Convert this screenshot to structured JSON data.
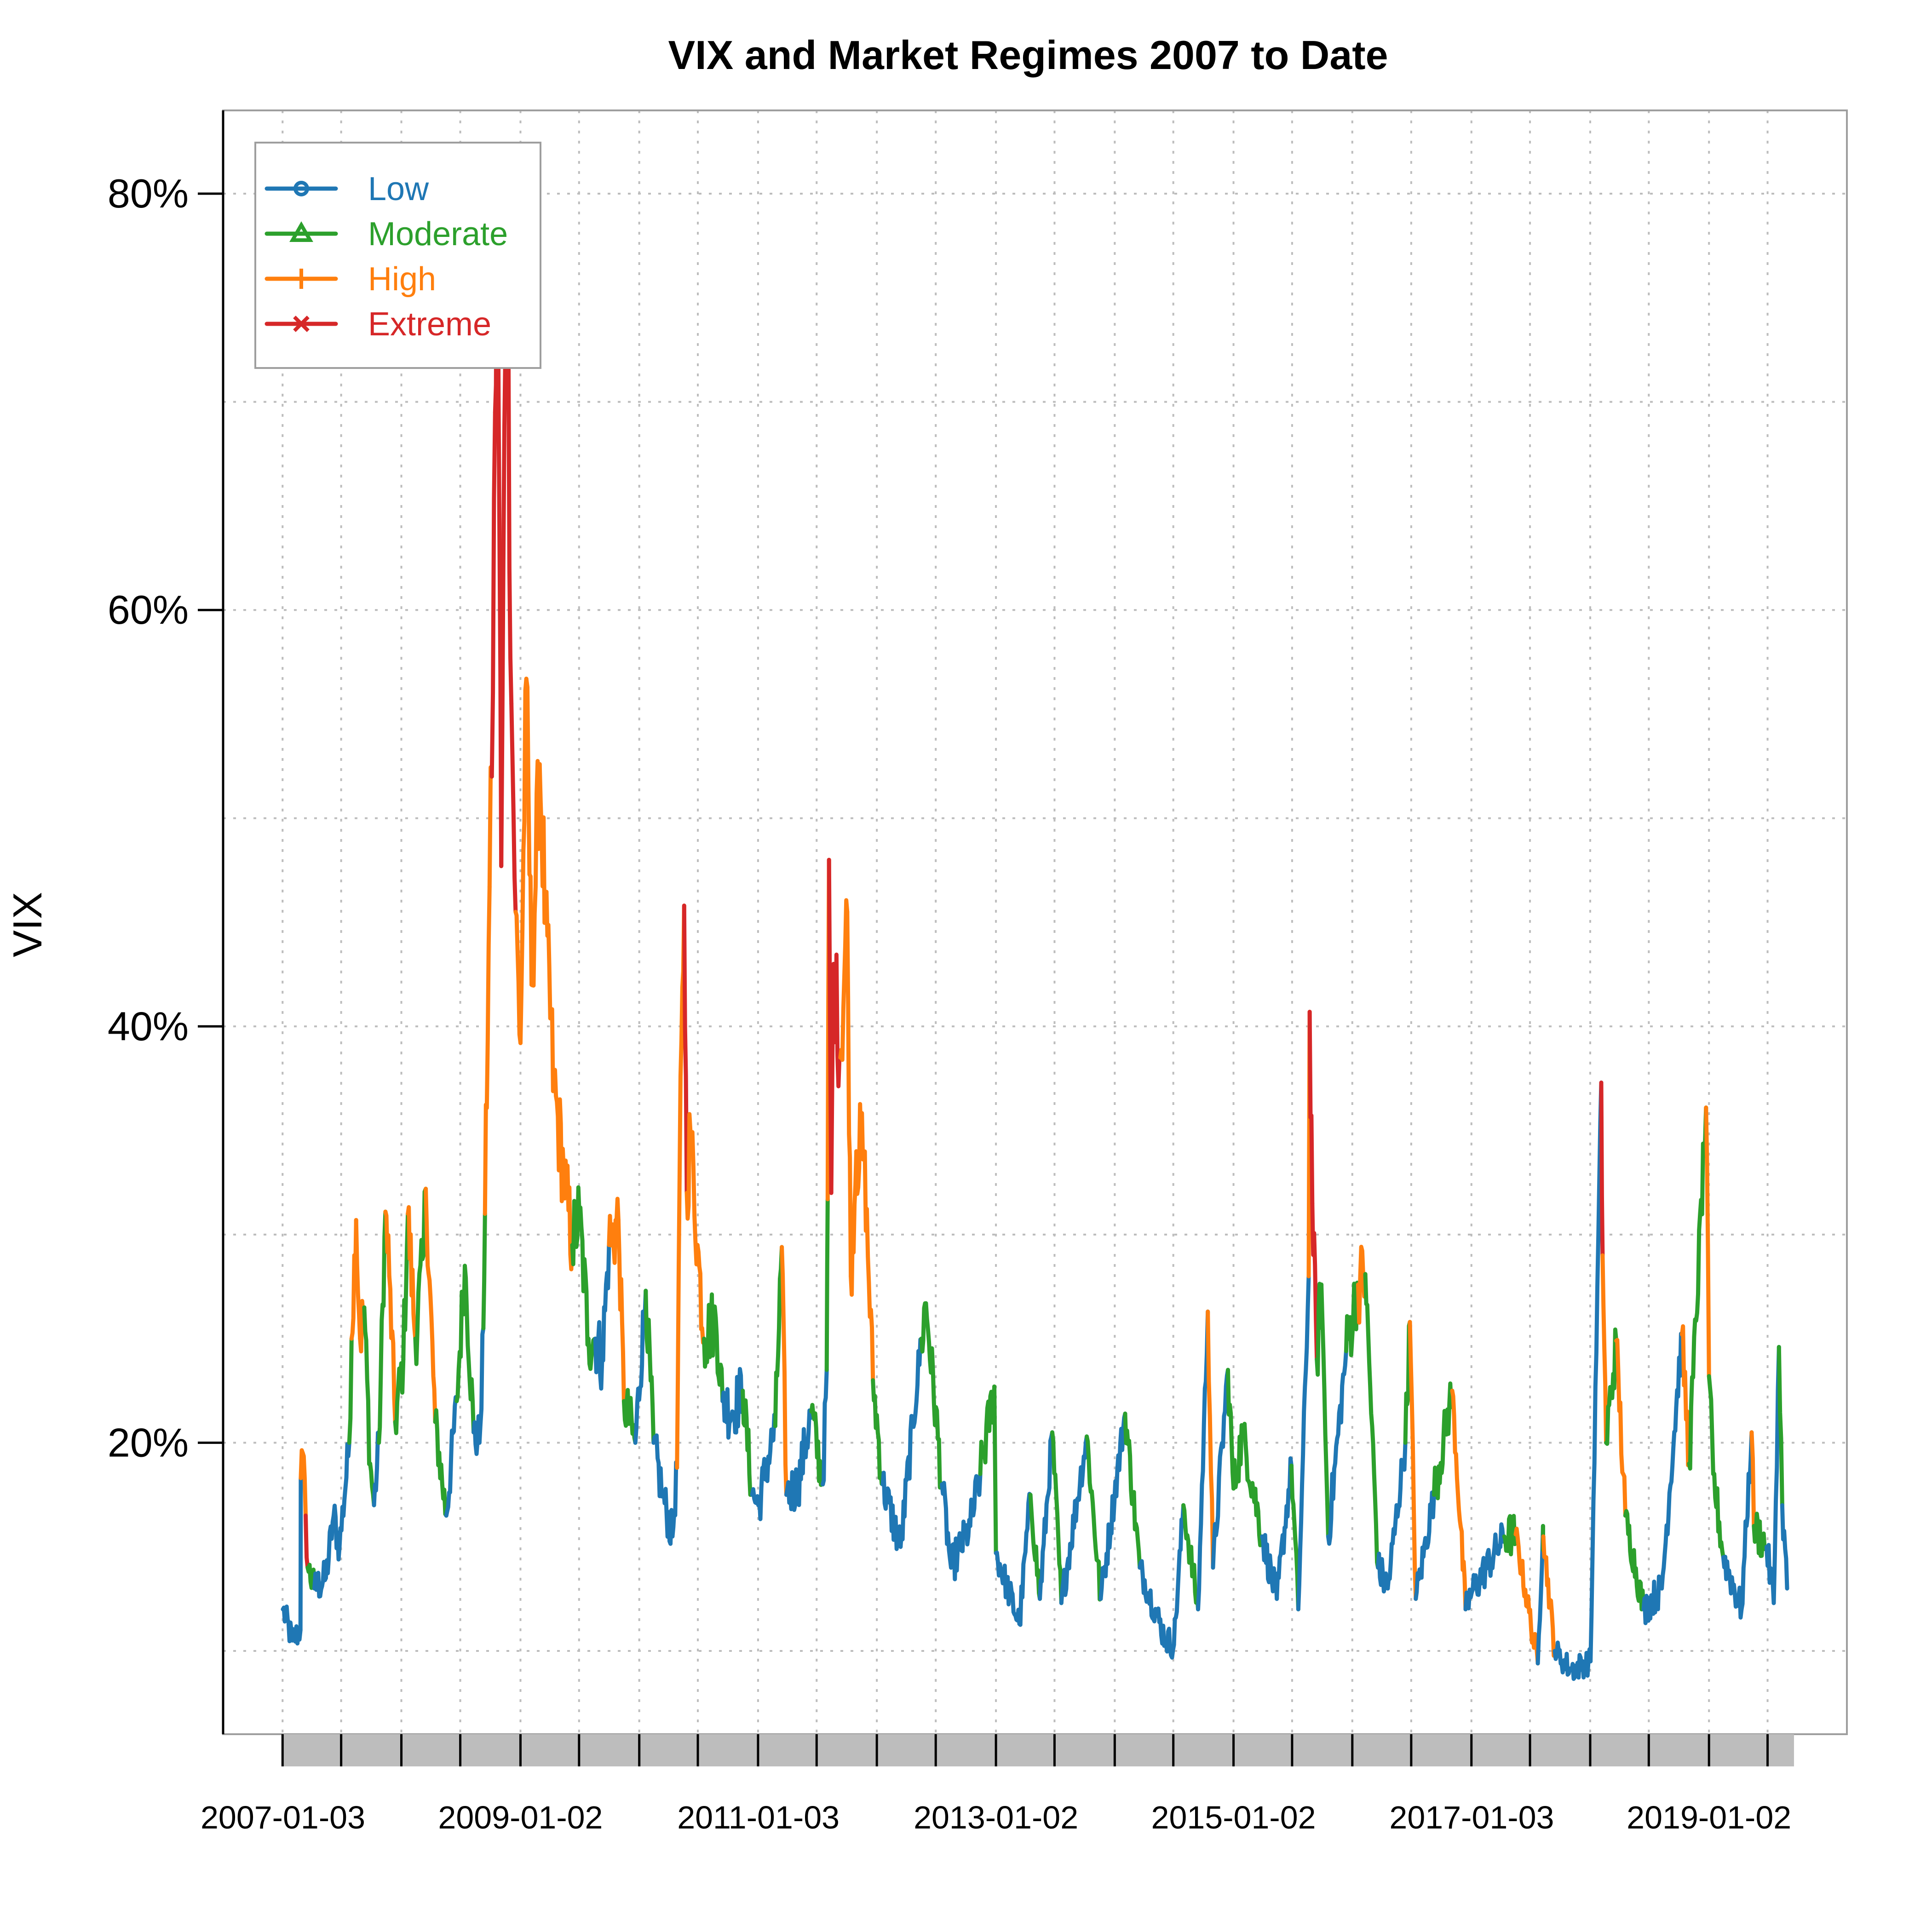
{
  "chart_data": {
    "type": "line",
    "title": "VIX and Market Regimes 2007 to Date",
    "ylabel": "VIX",
    "xlabel": "",
    "ylim": [
      6,
      84
    ],
    "y_ticks": [
      20,
      40,
      60,
      80
    ],
    "y_tick_labels": [
      "20%",
      "40%",
      "60%",
      "80%"
    ],
    "y_grid": [
      10,
      20,
      30,
      40,
      50,
      60,
      70,
      80
    ],
    "x_tick_labels": [
      "2007-01-03",
      "2009-01-02",
      "2011-01-03",
      "2013-01-02",
      "2015-01-02",
      "2017-01-03",
      "2019-01-02"
    ],
    "x_range": [
      "2007-01-03",
      "2019-08-30"
    ],
    "grid": true,
    "legend_position": "top-left",
    "regimes": [
      {
        "name": "Low",
        "color": "#1f77b4",
        "marker": "circle"
      },
      {
        "name": "Moderate",
        "color": "#2ca02c",
        "marker": "triangle"
      },
      {
        "name": "High",
        "color": "#ff7f0e",
        "marker": "plus"
      },
      {
        "name": "Extreme",
        "color": "#d62728",
        "marker": "x"
      }
    ],
    "series": [
      {
        "date": "2007-01-03",
        "vix": 12.0,
        "regime": "Low"
      },
      {
        "date": "2007-02-01",
        "vix": 10.5,
        "regime": "Low"
      },
      {
        "date": "2007-02-26",
        "vix": 11.0,
        "regime": "Low"
      },
      {
        "date": "2007-02-27",
        "vix": 18.3,
        "regime": "High"
      },
      {
        "date": "2007-03-05",
        "vix": 19.5,
        "regime": "High"
      },
      {
        "date": "2007-03-14",
        "vix": 16.5,
        "regime": "Extreme"
      },
      {
        "date": "2007-03-20",
        "vix": 14.0,
        "regime": "Moderate"
      },
      {
        "date": "2007-04-10",
        "vix": 13.0,
        "regime": "Low"
      },
      {
        "date": "2007-05-15",
        "vix": 13.5,
        "regime": "Low"
      },
      {
        "date": "2007-06-08",
        "vix": 16.5,
        "regime": "Low"
      },
      {
        "date": "2007-06-26",
        "vix": 15.0,
        "regime": "Low"
      },
      {
        "date": "2007-07-26",
        "vix": 20.0,
        "regime": "Moderate"
      },
      {
        "date": "2007-08-02",
        "vix": 25.0,
        "regime": "High"
      },
      {
        "date": "2007-08-16",
        "vix": 30.7,
        "regime": "High"
      },
      {
        "date": "2007-08-28",
        "vix": 25.0,
        "regime": "High"
      },
      {
        "date": "2007-09-10",
        "vix": 26.5,
        "regime": "Moderate"
      },
      {
        "date": "2007-09-28",
        "vix": 19.0,
        "regime": "Moderate"
      },
      {
        "date": "2007-10-10",
        "vix": 17.0,
        "regime": "Low"
      },
      {
        "date": "2007-10-25",
        "vix": 20.0,
        "regime": "Moderate"
      },
      {
        "date": "2007-11-14",
        "vix": 31.1,
        "regime": "High"
      },
      {
        "date": "2007-11-26",
        "vix": 28.0,
        "regime": "High"
      },
      {
        "date": "2007-12-14",
        "vix": 21.0,
        "regime": "Moderate"
      },
      {
        "date": "2008-01-08",
        "vix": 24.0,
        "regime": "Moderate"
      },
      {
        "date": "2008-01-22",
        "vix": 31.0,
        "regime": "High"
      },
      {
        "date": "2008-02-14",
        "vix": 25.0,
        "regime": "Moderate"
      },
      {
        "date": "2008-03-10",
        "vix": 29.0,
        "regime": "Moderate"
      },
      {
        "date": "2008-03-17",
        "vix": 32.2,
        "regime": "High"
      },
      {
        "date": "2008-04-15",
        "vix": 21.0,
        "regime": "Moderate"
      },
      {
        "date": "2008-05-19",
        "vix": 16.5,
        "regime": "Low"
      },
      {
        "date": "2008-06-20",
        "vix": 22.0,
        "regime": "Moderate"
      },
      {
        "date": "2008-07-15",
        "vix": 28.5,
        "regime": "Moderate"
      },
      {
        "date": "2008-08-11",
        "vix": 20.5,
        "regime": "Low"
      },
      {
        "date": "2008-08-29",
        "vix": 20.0,
        "regime": "Low"
      },
      {
        "date": "2008-09-10",
        "vix": 25.5,
        "regime": "Moderate"
      },
      {
        "date": "2008-09-15",
        "vix": 31.0,
        "regime": "High"
      },
      {
        "date": "2008-09-29",
        "vix": 46.7,
        "regime": "High"
      },
      {
        "date": "2008-10-06",
        "vix": 52.0,
        "regime": "Extreme"
      },
      {
        "date": "2008-10-16",
        "vix": 69.5,
        "regime": "Extreme"
      },
      {
        "date": "2008-10-24",
        "vix": 79.1,
        "regime": "Extreme"
      },
      {
        "date": "2008-11-04",
        "vix": 47.7,
        "regime": "Extreme"
      },
      {
        "date": "2008-11-20",
        "vix": 80.9,
        "regime": "Extreme"
      },
      {
        "date": "2008-12-05",
        "vix": 55.5,
        "regime": "Extreme"
      },
      {
        "date": "2008-12-18",
        "vix": 45.5,
        "regime": "High"
      },
      {
        "date": "2009-01-02",
        "vix": 39.2,
        "regime": "High"
      },
      {
        "date": "2009-01-20",
        "vix": 56.7,
        "regime": "High"
      },
      {
        "date": "2009-02-05",
        "vix": 42.0,
        "regime": "High"
      },
      {
        "date": "2009-03-02",
        "vix": 52.6,
        "regime": "High"
      },
      {
        "date": "2009-03-20",
        "vix": 45.0,
        "regime": "High"
      },
      {
        "date": "2009-04-15",
        "vix": 37.0,
        "regime": "High"
      },
      {
        "date": "2009-05-15",
        "vix": 33.0,
        "regime": "High"
      },
      {
        "date": "2009-06-10",
        "vix": 29.5,
        "regime": "Moderate"
      },
      {
        "date": "2009-07-02",
        "vix": 31.0,
        "regime": "Moderate"
      },
      {
        "date": "2009-07-30",
        "vix": 25.0,
        "regime": "Moderate"
      },
      {
        "date": "2009-08-20",
        "vix": 25.0,
        "regime": "Low"
      },
      {
        "date": "2009-09-10",
        "vix": 24.0,
        "regime": "Low"
      },
      {
        "date": "2009-10-01",
        "vix": 29.5,
        "regime": "High"
      },
      {
        "date": "2009-10-30",
        "vix": 30.7,
        "regime": "High"
      },
      {
        "date": "2009-11-16",
        "vix": 22.0,
        "regime": "Moderate"
      },
      {
        "date": "2009-12-21",
        "vix": 20.0,
        "regime": "Low"
      },
      {
        "date": "2010-01-22",
        "vix": 27.3,
        "regime": "Moderate"
      },
      {
        "date": "2010-02-15",
        "vix": 20.0,
        "regime": "Low"
      },
      {
        "date": "2010-03-15",
        "vix": 17.5,
        "regime": "Low"
      },
      {
        "date": "2010-04-14",
        "vix": 15.5,
        "regime": "Low"
      },
      {
        "date": "2010-04-28",
        "vix": 18.8,
        "regime": "High"
      },
      {
        "date": "2010-05-06",
        "vix": 32.8,
        "regime": "High"
      },
      {
        "date": "2010-05-20",
        "vix": 45.8,
        "regime": "Extreme"
      },
      {
        "date": "2010-05-28",
        "vix": 32.0,
        "regime": "High"
      },
      {
        "date": "2010-06-08",
        "vix": 35.0,
        "regime": "High"
      },
      {
        "date": "2010-06-30",
        "vix": 29.5,
        "regime": "High"
      },
      {
        "date": "2010-07-20",
        "vix": 25.0,
        "regime": "Moderate"
      },
      {
        "date": "2010-08-25",
        "vix": 26.0,
        "regime": "Moderate"
      },
      {
        "date": "2010-09-15",
        "vix": 22.0,
        "regime": "Low"
      },
      {
        "date": "2010-10-15",
        "vix": 21.5,
        "regime": "Low"
      },
      {
        "date": "2010-11-16",
        "vix": 22.5,
        "regime": "Moderate"
      },
      {
        "date": "2010-12-15",
        "vix": 17.5,
        "regime": "Low"
      },
      {
        "date": "2011-01-03",
        "vix": 17.0,
        "regime": "Low"
      },
      {
        "date": "2011-02-24",
        "vix": 20.8,
        "regime": "Moderate"
      },
      {
        "date": "2011-03-16",
        "vix": 29.4,
        "regime": "High"
      },
      {
        "date": "2011-03-30",
        "vix": 17.5,
        "regime": "Low"
      },
      {
        "date": "2011-05-05",
        "vix": 18.0,
        "regime": "Low"
      },
      {
        "date": "2011-06-15",
        "vix": 21.5,
        "regime": "Moderate"
      },
      {
        "date": "2011-07-20",
        "vix": 18.0,
        "regime": "Low"
      },
      {
        "date": "2011-08-01",
        "vix": 23.5,
        "regime": "Moderate"
      },
      {
        "date": "2011-08-04",
        "vix": 31.7,
        "regime": "High"
      },
      {
        "date": "2011-08-08",
        "vix": 48.0,
        "regime": "Extreme"
      },
      {
        "date": "2011-08-15",
        "vix": 32.0,
        "regime": "Extreme"
      },
      {
        "date": "2011-08-22",
        "vix": 43.0,
        "regime": "Extreme"
      },
      {
        "date": "2011-09-12",
        "vix": 38.5,
        "regime": "High"
      },
      {
        "date": "2011-10-03",
        "vix": 45.5,
        "regime": "High"
      },
      {
        "date": "2011-10-14",
        "vix": 28.0,
        "regime": "High"
      },
      {
        "date": "2011-10-31",
        "vix": 34.0,
        "regime": "High"
      },
      {
        "date": "2011-11-23",
        "vix": 34.0,
        "regime": "High"
      },
      {
        "date": "2011-12-21",
        "vix": 23.0,
        "regime": "Moderate"
      },
      {
        "date": "2012-01-20",
        "vix": 18.0,
        "regime": "Low"
      },
      {
        "date": "2012-03-15",
        "vix": 15.0,
        "regime": "Low"
      },
      {
        "date": "2012-05-18",
        "vix": 25.0,
        "regime": "Moderate"
      },
      {
        "date": "2012-06-01",
        "vix": 26.7,
        "regime": "Moderate"
      },
      {
        "date": "2012-07-20",
        "vix": 18.0,
        "regime": "Low"
      },
      {
        "date": "2012-08-17",
        "vix": 14.0,
        "regime": "Low"
      },
      {
        "date": "2012-10-15",
        "vix": 16.0,
        "regime": "Low"
      },
      {
        "date": "2012-11-15",
        "vix": 18.5,
        "regime": "Moderate"
      },
      {
        "date": "2012-12-28",
        "vix": 22.7,
        "regime": "Moderate"
      },
      {
        "date": "2013-01-02",
        "vix": 14.7,
        "regime": "Low"
      },
      {
        "date": "2013-03-15",
        "vix": 11.3,
        "regime": "Low"
      },
      {
        "date": "2013-04-18",
        "vix": 17.5,
        "regime": "Moderate"
      },
      {
        "date": "2013-05-17",
        "vix": 12.5,
        "regime": "Low"
      },
      {
        "date": "2013-06-24",
        "vix": 20.5,
        "regime": "Moderate"
      },
      {
        "date": "2013-07-22",
        "vix": 12.3,
        "regime": "Low"
      },
      {
        "date": "2013-10-08",
        "vix": 20.3,
        "regime": "Moderate"
      },
      {
        "date": "2013-11-20",
        "vix": 12.5,
        "regime": "Low"
      },
      {
        "date": "2014-02-03",
        "vix": 21.4,
        "regime": "Moderate"
      },
      {
        "date": "2014-03-20",
        "vix": 14.0,
        "regime": "Low"
      },
      {
        "date": "2014-06-06",
        "vix": 10.6,
        "regime": "Low"
      },
      {
        "date": "2014-07-03",
        "vix": 10.3,
        "regime": "Low"
      },
      {
        "date": "2014-08-01",
        "vix": 17.0,
        "regime": "Moderate"
      },
      {
        "date": "2014-09-15",
        "vix": 12.0,
        "regime": "Low"
      },
      {
        "date": "2014-10-15",
        "vix": 26.3,
        "regime": "High"
      },
      {
        "date": "2014-10-31",
        "vix": 14.0,
        "regime": "Low"
      },
      {
        "date": "2014-12-16",
        "vix": 23.5,
        "regime": "Moderate"
      },
      {
        "date": "2015-01-02",
        "vix": 17.8,
        "regime": "Moderate"
      },
      {
        "date": "2015-01-30",
        "vix": 20.5,
        "regime": "Moderate"
      },
      {
        "date": "2015-03-31",
        "vix": 15.5,
        "regime": "Low"
      },
      {
        "date": "2015-05-15",
        "vix": 12.5,
        "regime": "Low"
      },
      {
        "date": "2015-06-29",
        "vix": 18.9,
        "regime": "Moderate"
      },
      {
        "date": "2015-07-20",
        "vix": 12.0,
        "regime": "Low"
      },
      {
        "date": "2015-08-21",
        "vix": 28.0,
        "regime": "High"
      },
      {
        "date": "2015-08-24",
        "vix": 40.7,
        "regime": "Extreme"
      },
      {
        "date": "2015-09-01",
        "vix": 31.5,
        "regime": "Extreme"
      },
      {
        "date": "2015-09-15",
        "vix": 24.0,
        "regime": "Moderate"
      },
      {
        "date": "2015-09-29",
        "vix": 27.6,
        "regime": "Moderate"
      },
      {
        "date": "2015-10-20",
        "vix": 15.5,
        "regime": "Low"
      },
      {
        "date": "2015-12-14",
        "vix": 24.4,
        "regime": "Moderate"
      },
      {
        "date": "2016-01-20",
        "vix": 27.6,
        "regime": "High"
      },
      {
        "date": "2016-02-11",
        "vix": 28.1,
        "regime": "Moderate"
      },
      {
        "date": "2016-03-21",
        "vix": 14.0,
        "regime": "Low"
      },
      {
        "date": "2016-04-20",
        "vix": 13.0,
        "regime": "Low"
      },
      {
        "date": "2016-06-13",
        "vix": 20.0,
        "regime": "Moderate"
      },
      {
        "date": "2016-06-27",
        "vix": 25.8,
        "regime": "High"
      },
      {
        "date": "2016-07-15",
        "vix": 12.5,
        "regime": "Low"
      },
      {
        "date": "2016-09-09",
        "vix": 17.5,
        "regime": "Moderate"
      },
      {
        "date": "2016-11-04",
        "vix": 22.5,
        "regime": "High"
      },
      {
        "date": "2016-12-15",
        "vix": 12.0,
        "regime": "Low"
      },
      {
        "date": "2017-01-03",
        "vix": 12.8,
        "regime": "Low"
      },
      {
        "date": "2017-04-13",
        "vix": 15.5,
        "regime": "Moderate"
      },
      {
        "date": "2017-05-18",
        "vix": 15.6,
        "regime": "High"
      },
      {
        "date": "2017-07-25",
        "vix": 9.4,
        "regime": "Low"
      },
      {
        "date": "2017-08-10",
        "vix": 16.0,
        "regime": "Moderate"
      },
      {
        "date": "2017-08-11",
        "vix": 15.5,
        "regime": "High"
      },
      {
        "date": "2017-09-15",
        "vix": 10.0,
        "regime": "Low"
      },
      {
        "date": "2017-11-03",
        "vix": 9.1,
        "regime": "Low"
      },
      {
        "date": "2018-01-03",
        "vix": 9.5,
        "regime": "Low"
      },
      {
        "date": "2018-02-05",
        "vix": 37.3,
        "regime": "Extreme"
      },
      {
        "date": "2018-02-09",
        "vix": 29.0,
        "regime": "High"
      },
      {
        "date": "2018-02-20",
        "vix": 20.0,
        "regime": "Moderate"
      },
      {
        "date": "2018-03-23",
        "vix": 24.9,
        "regime": "High"
      },
      {
        "date": "2018-04-20",
        "vix": 16.5,
        "regime": "Moderate"
      },
      {
        "date": "2018-06-15",
        "vix": 12.0,
        "regime": "Low"
      },
      {
        "date": "2018-08-10",
        "vix": 13.0,
        "regime": "Low"
      },
      {
        "date": "2018-10-11",
        "vix": 25.2,
        "regime": "High"
      },
      {
        "date": "2018-11-02",
        "vix": 19.0,
        "regime": "Moderate"
      },
      {
        "date": "2018-12-24",
        "vix": 36.1,
        "regime": "High"
      },
      {
        "date": "2019-01-02",
        "vix": 23.2,
        "regime": "Moderate"
      },
      {
        "date": "2019-01-15",
        "vix": 18.5,
        "regime": "Moderate"
      },
      {
        "date": "2019-02-15",
        "vix": 14.5,
        "regime": "Low"
      },
      {
        "date": "2019-04-12",
        "vix": 12.0,
        "regime": "Low"
      },
      {
        "date": "2019-05-13",
        "vix": 20.5,
        "regime": "High"
      },
      {
        "date": "2019-05-20",
        "vix": 16.0,
        "regime": "Moderate"
      },
      {
        "date": "2019-06-28",
        "vix": 15.0,
        "regime": "Low"
      },
      {
        "date": "2019-07-20",
        "vix": 12.3,
        "regime": "Low"
      },
      {
        "date": "2019-08-05",
        "vix": 24.6,
        "regime": "Moderate"
      },
      {
        "date": "2019-08-15",
        "vix": 17.0,
        "regime": "Low"
      },
      {
        "date": "2019-08-30",
        "vix": 13.0,
        "regime": "Low"
      }
    ]
  }
}
